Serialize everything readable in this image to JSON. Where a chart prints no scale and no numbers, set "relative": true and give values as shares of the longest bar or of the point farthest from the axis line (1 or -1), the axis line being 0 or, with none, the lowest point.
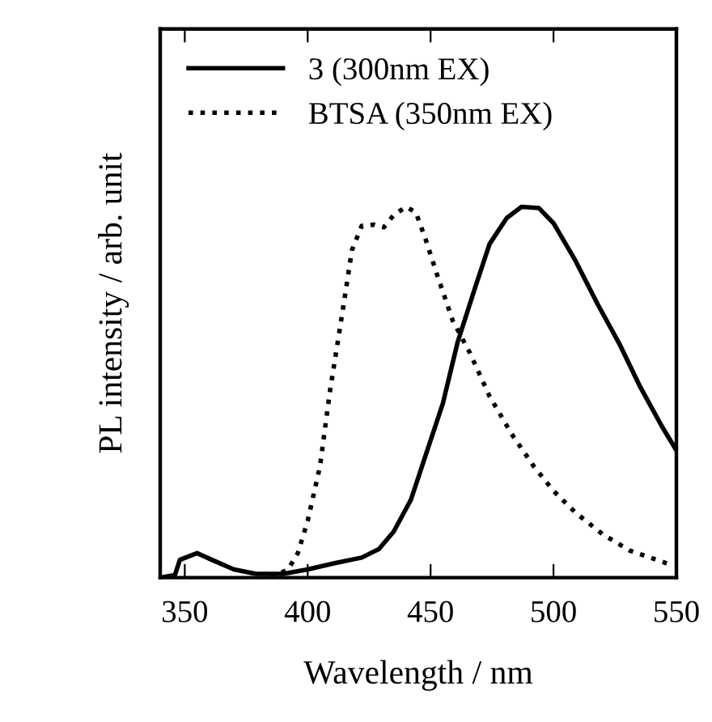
{
  "chart_data": {
    "type": "line",
    "xlabel": "Wavelength / nm",
    "ylabel": "PL intensity / arb. unit",
    "relative": true,
    "xlim": [
      340,
      550
    ],
    "xticks": [
      350,
      400,
      450,
      500,
      550
    ],
    "grid": false,
    "legend": "top left",
    "marker": "none",
    "series": [
      {
        "name": "3 (300nm EX)",
        "color": "#000000",
        "line_style": "solid",
        "x": [
          340,
          346,
          348,
          355,
          361,
          370,
          379,
          390,
          400,
          411,
          422,
          429,
          435,
          442,
          448,
          455,
          461,
          468,
          474,
          481,
          487,
          494,
          500,
          509,
          518,
          527,
          535,
          544,
          550
        ],
        "values": [
          0,
          0.007,
          0.048,
          0.066,
          0.048,
          0.022,
          0.01,
          0.01,
          0.022,
          0.039,
          0.054,
          0.077,
          0.124,
          0.21,
          0.33,
          0.47,
          0.635,
          0.78,
          0.9,
          0.97,
          1.0,
          0.997,
          0.956,
          0.854,
          0.737,
          0.628,
          0.518,
          0.409,
          0.343
        ]
      },
      {
        "name": "BTSA (350nm EX)",
        "color": "#000000",
        "line_style": "dotted",
        "x": [
          385,
          392,
          396,
          400,
          405,
          409,
          414,
          418,
          422,
          427,
          431,
          435,
          440,
          444,
          448,
          453,
          459,
          466,
          474,
          483,
          492,
          500,
          509,
          520,
          531,
          542,
          547
        ],
        "values": [
          0,
          0.022,
          0.066,
          0.153,
          0.3,
          0.5,
          0.71,
          0.883,
          0.949,
          0.952,
          0.945,
          0.978,
          1.0,
          0.985,
          0.912,
          0.81,
          0.693,
          0.606,
          0.489,
          0.387,
          0.3,
          0.234,
          0.175,
          0.117,
          0.073,
          0.048,
          0.036
        ]
      }
    ]
  }
}
